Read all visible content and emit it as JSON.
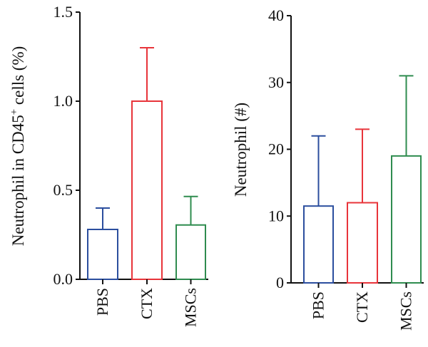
{
  "chart_data": [
    {
      "type": "bar",
      "ylabel": "Neutrophil in CD45",
      "ylabel_sup": "+",
      "ylabel_tail": " cells (%)",
      "categories": [
        "PBS",
        "CTX",
        "MSCs"
      ],
      "values": [
        0.28,
        1.0,
        0.305
      ],
      "error_upper": [
        0.4,
        1.3,
        0.465
      ],
      "ylim": [
        0,
        1.5
      ],
      "yticks": [
        "0.0",
        "0.5",
        "1.0",
        "1.5"
      ],
      "bar_colors": [
        "#2b4e9e",
        "#e8343a",
        "#2f8c4f"
      ]
    },
    {
      "type": "bar",
      "ylabel": "Neutrophil (#)",
      "categories": [
        "PBS",
        "CTX",
        "MSCs"
      ],
      "values": [
        11.5,
        12.0,
        19.0
      ],
      "error_upper": [
        22.0,
        23.0,
        31.0
      ],
      "ylim": [
        0,
        40
      ],
      "yticks": [
        "0",
        "10",
        "20",
        "30",
        "40"
      ],
      "bar_colors": [
        "#2b4e9e",
        "#e8343a",
        "#2f8c4f"
      ]
    }
  ]
}
